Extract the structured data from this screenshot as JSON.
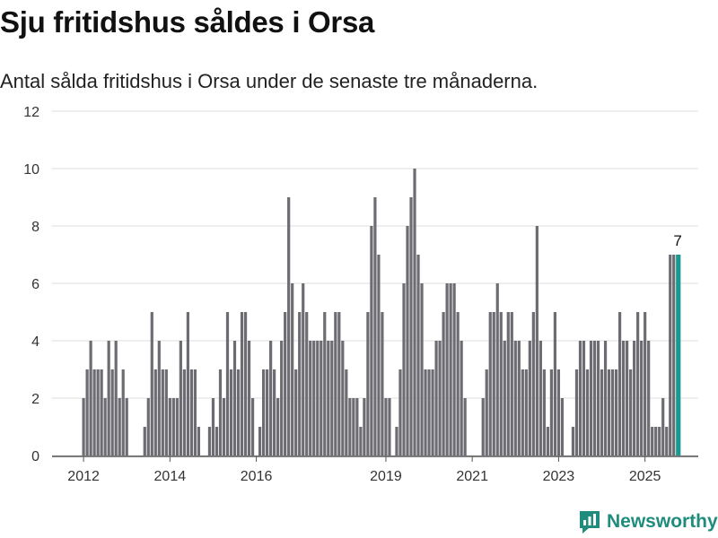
{
  "title": "Sju fritidshus såldes i Orsa",
  "subtitle": "Antal sålda fritidshus i Orsa under de senaste tre månaderna.",
  "brand": {
    "name": "Newsworthy",
    "color": "#1f8c7d"
  },
  "colors": {
    "bar": "#6d6c72",
    "highlight": "#1a9990",
    "grid": "#dddddd",
    "axis": "#555555"
  },
  "chart_data": {
    "type": "bar",
    "title": "Sju fritidshus såldes i Orsa",
    "xlabel": "",
    "ylabel": "",
    "ylim": [
      0,
      12
    ],
    "yticks": [
      0,
      2,
      4,
      6,
      8,
      10,
      12
    ],
    "x_tick_labels": [
      "2012",
      "2014",
      "2016",
      "2019",
      "2021",
      "2023",
      "2025"
    ],
    "x_tick_bar_index": [
      0,
      24,
      48,
      84,
      108,
      132,
      156
    ],
    "highlight_label": "7",
    "grid": true,
    "values": [
      2,
      3,
      4,
      3,
      3,
      3,
      2,
      4,
      3,
      4,
      2,
      3,
      2,
      null,
      null,
      null,
      null,
      1,
      2,
      5,
      3,
      4,
      3,
      3,
      2,
      2,
      2,
      4,
      3,
      5,
      3,
      3,
      1,
      null,
      null,
      1,
      2,
      1,
      3,
      2,
      5,
      3,
      4,
      3,
      5,
      5,
      4,
      2,
      null,
      1,
      3,
      3,
      4,
      3,
      2,
      4,
      5,
      9,
      6,
      3,
      5,
      6,
      5,
      4,
      4,
      4,
      4,
      5,
      4,
      4,
      5,
      5,
      4,
      3,
      2,
      2,
      2,
      1,
      2,
      5,
      8,
      9,
      7,
      5,
      2,
      2,
      null,
      1,
      3,
      6,
      8,
      9,
      10,
      7,
      6,
      3,
      3,
      3,
      4,
      4,
      5,
      6,
      6,
      6,
      5,
      4,
      2,
      null,
      null,
      null,
      null,
      2,
      3,
      5,
      5,
      6,
      5,
      4,
      5,
      5,
      4,
      4,
      3,
      3,
      4,
      5,
      8,
      4,
      3,
      1,
      3,
      5,
      3,
      2,
      null,
      null,
      1,
      3,
      4,
      4,
      3,
      4,
      4,
      4,
      3,
      4,
      3,
      3,
      3,
      5,
      4,
      4,
      3,
      4,
      5,
      4,
      5,
      4,
      1,
      1,
      1,
      2,
      1,
      7,
      7,
      7
    ]
  }
}
